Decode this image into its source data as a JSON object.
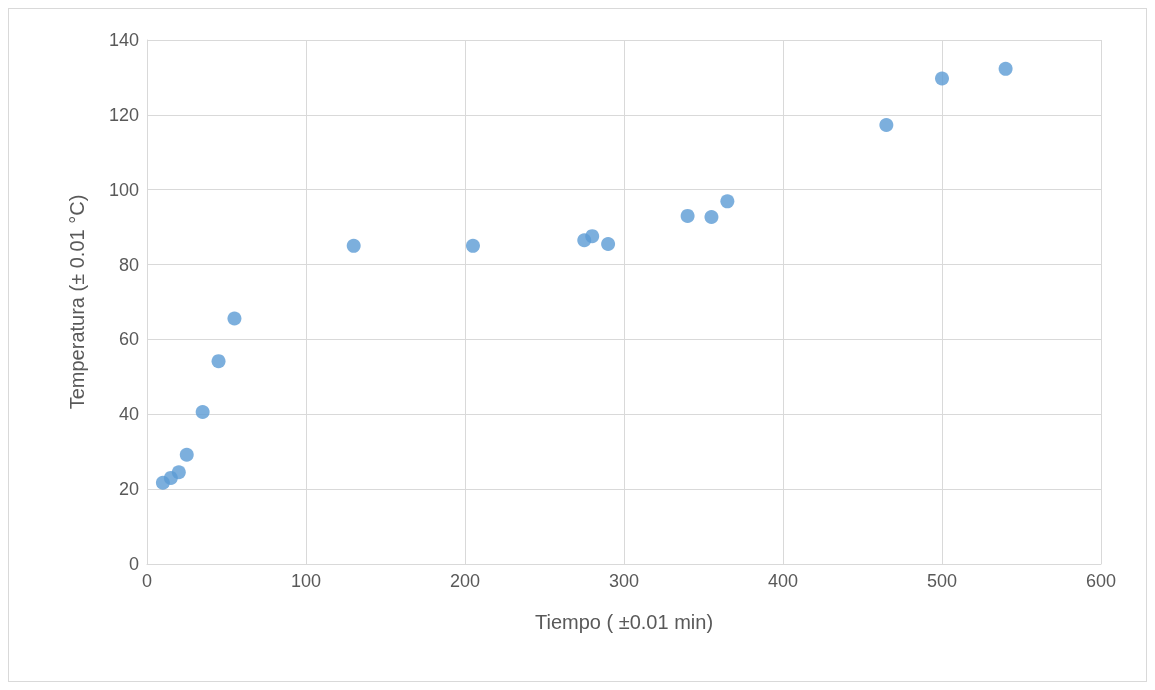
{
  "chart_data": {
    "type": "scatter",
    "xlabel": "Tiempo ( ±0.01 min)",
    "ylabel": "Temperatura (± 0.01 °C)",
    "x": [
      10,
      15,
      20,
      25,
      35,
      45,
      55,
      130,
      205,
      275,
      280,
      290,
      340,
      355,
      365,
      465,
      500,
      540
    ],
    "series": [
      {
        "color": "#5b9bd5",
        "values": [
          21.7,
          23.0,
          24.5,
          29.2,
          40.6,
          54.2,
          65.6,
          85.0,
          85.0,
          86.5,
          87.6,
          85.5,
          93.0,
          92.7,
          96.9,
          117.3,
          129.7,
          132.3
        ]
      }
    ],
    "xlim": [
      0,
      600
    ],
    "xticks": [
      0,
      100,
      200,
      300,
      400,
      500,
      600
    ],
    "ylim": [
      0,
      140
    ],
    "yticks": [
      0,
      20,
      40,
      60,
      80,
      100,
      120,
      140
    ],
    "grid": true,
    "marker": "circle"
  }
}
